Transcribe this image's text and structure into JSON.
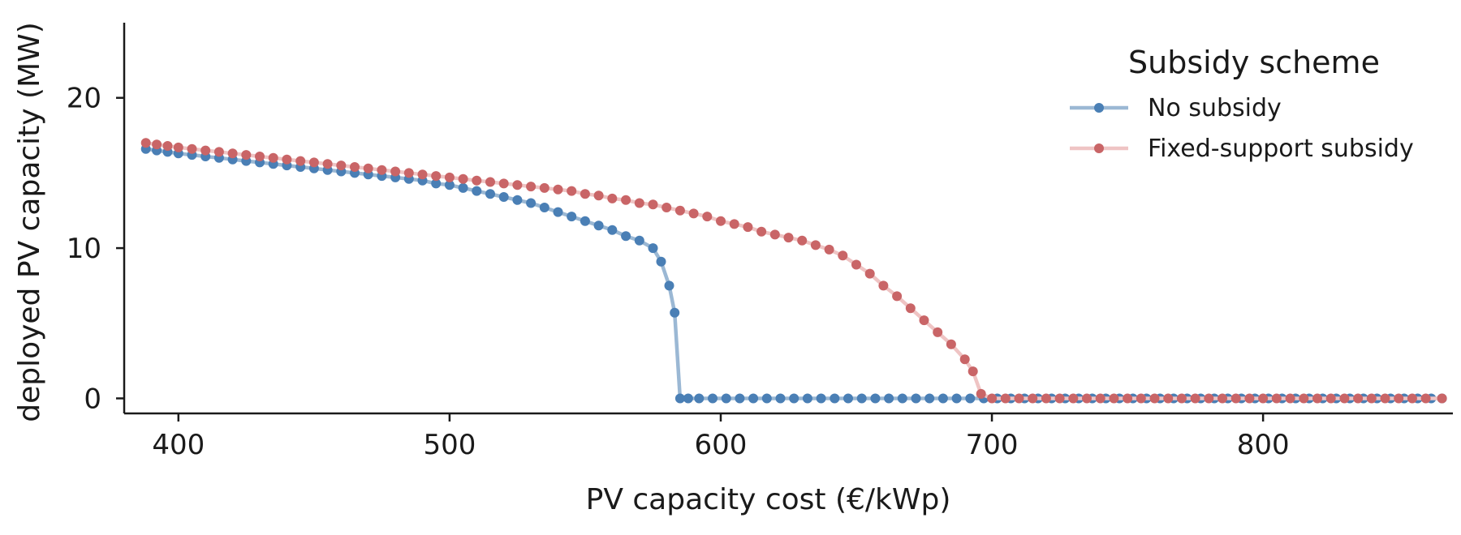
{
  "chart_data": {
    "type": "line",
    "title": "",
    "xlabel": "PV capacity cost (€/kWp)",
    "ylabel": "deployed PV capacity (MW)",
    "xlim": [
      380,
      870
    ],
    "ylim": [
      -1,
      25
    ],
    "xticks": [
      400,
      500,
      600,
      700,
      800
    ],
    "yticks": [
      0,
      10,
      20
    ],
    "grid": false,
    "legend": {
      "title": "Subsidy scheme",
      "position": "top-right"
    },
    "series": [
      {
        "name": "No subsidy",
        "color": "#4a7fb5",
        "line_color": "#9bb8d4",
        "x": [
          388,
          392,
          396,
          400,
          405,
          410,
          415,
          420,
          425,
          430,
          435,
          440,
          445,
          450,
          455,
          460,
          465,
          470,
          475,
          480,
          485,
          490,
          495,
          500,
          505,
          510,
          515,
          520,
          525,
          530,
          535,
          540,
          545,
          550,
          555,
          560,
          565,
          570,
          575,
          578,
          581,
          583,
          585,
          588,
          592,
          597,
          602,
          607,
          612,
          617,
          622,
          627,
          632,
          637,
          642,
          647,
          652,
          657,
          662,
          667,
          672,
          677,
          682,
          687,
          692,
          697,
          702,
          707,
          712,
          717,
          722,
          727,
          732,
          737,
          742,
          747,
          752,
          757,
          762,
          767,
          772,
          777,
          782,
          787,
          792,
          797,
          802,
          807,
          812,
          817,
          822,
          827,
          832,
          837,
          842,
          847,
          852,
          857,
          862,
          866
        ],
        "y": [
          16.6,
          16.5,
          16.4,
          16.3,
          16.2,
          16.1,
          16.0,
          15.9,
          15.8,
          15.7,
          15.6,
          15.5,
          15.4,
          15.3,
          15.2,
          15.1,
          15.0,
          14.9,
          14.8,
          14.7,
          14.6,
          14.5,
          14.3,
          14.2,
          14.0,
          13.8,
          13.6,
          13.4,
          13.2,
          13.0,
          12.7,
          12.4,
          12.1,
          11.8,
          11.5,
          11.2,
          10.8,
          10.5,
          10.0,
          9.1,
          7.5,
          5.7,
          0.0,
          0.0,
          0.0,
          0.0,
          0.0,
          0.0,
          0.0,
          0.0,
          0.0,
          0.0,
          0.0,
          0.0,
          0.0,
          0.0,
          0.0,
          0.0,
          0.0,
          0.0,
          0.0,
          0.0,
          0.0,
          0.0,
          0.0,
          0.0,
          0.0,
          0.0,
          0.0,
          0.0,
          0.0,
          0.0,
          0.0,
          0.0,
          0.0,
          0.0,
          0.0,
          0.0,
          0.0,
          0.0,
          0.0,
          0.0,
          0.0,
          0.0,
          0.0,
          0.0,
          0.0,
          0.0,
          0.0,
          0.0,
          0.0,
          0.0,
          0.0,
          0.0,
          0.0,
          0.0,
          0.0,
          0.0,
          0.0,
          0.0
        ]
      },
      {
        "name": "Fixed-support subsidy",
        "color": "#c96567",
        "line_color": "#efc4c4",
        "x": [
          388,
          392,
          396,
          400,
          405,
          410,
          415,
          420,
          425,
          430,
          435,
          440,
          445,
          450,
          455,
          460,
          465,
          470,
          475,
          480,
          485,
          490,
          495,
          500,
          505,
          510,
          515,
          520,
          525,
          530,
          535,
          540,
          545,
          550,
          555,
          560,
          565,
          570,
          575,
          580,
          585,
          590,
          595,
          600,
          605,
          610,
          615,
          620,
          625,
          630,
          635,
          640,
          645,
          650,
          655,
          660,
          665,
          670,
          675,
          680,
          685,
          690,
          693,
          696,
          700,
          705,
          710,
          715,
          720,
          725,
          730,
          735,
          740,
          745,
          750,
          755,
          760,
          765,
          770,
          775,
          780,
          785,
          790,
          795,
          800,
          805,
          810,
          815,
          820,
          825,
          830,
          835,
          840,
          845,
          850,
          855,
          860,
          866
        ],
        "y": [
          17.0,
          16.9,
          16.8,
          16.7,
          16.6,
          16.5,
          16.4,
          16.3,
          16.2,
          16.1,
          16.0,
          15.9,
          15.8,
          15.7,
          15.6,
          15.5,
          15.4,
          15.3,
          15.2,
          15.1,
          15.0,
          14.9,
          14.8,
          14.7,
          14.6,
          14.5,
          14.4,
          14.3,
          14.2,
          14.1,
          14.0,
          13.9,
          13.8,
          13.6,
          13.5,
          13.3,
          13.2,
          13.0,
          12.9,
          12.7,
          12.5,
          12.3,
          12.1,
          11.8,
          11.6,
          11.4,
          11.1,
          10.9,
          10.7,
          10.5,
          10.2,
          9.9,
          9.5,
          8.9,
          8.3,
          7.5,
          6.8,
          6.0,
          5.2,
          4.4,
          3.6,
          2.6,
          1.8,
          0.3,
          0.0,
          0.0,
          0.0,
          0.0,
          0.0,
          0.0,
          0.0,
          0.0,
          0.0,
          0.0,
          0.0,
          0.0,
          0.0,
          0.0,
          0.0,
          0.0,
          0.0,
          0.0,
          0.0,
          0.0,
          0.0,
          0.0,
          0.0,
          0.0,
          0.0,
          0.0,
          0.0,
          0.0,
          0.0,
          0.0,
          0.0,
          0.0,
          0.0,
          0.0
        ]
      }
    ]
  }
}
